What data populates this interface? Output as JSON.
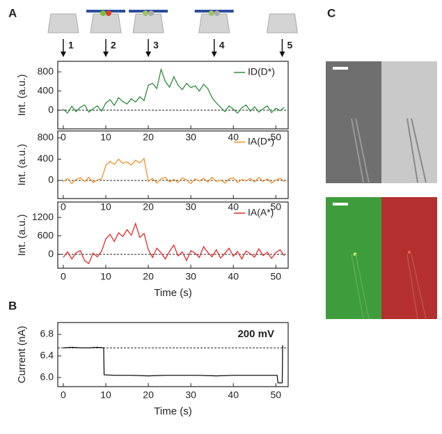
{
  "panel_labels": [
    "A",
    "B",
    "C"
  ],
  "markers": {
    "labels": [
      "1",
      "2",
      "3",
      "4",
      "5"
    ],
    "x": [
      0,
      10,
      20,
      35.5,
      51.5
    ]
  },
  "chart_data": [
    {
      "type": "line",
      "x": [
        0,
        1,
        2,
        3,
        4,
        5,
        6,
        7,
        8,
        9,
        10,
        11,
        12,
        13,
        14,
        15,
        16,
        17,
        18,
        19,
        20,
        21,
        22,
        23,
        24,
        25,
        26,
        27,
        28,
        29,
        30,
        31,
        32,
        33,
        34,
        35,
        36,
        37,
        38,
        39,
        40,
        41,
        42,
        43,
        44,
        45,
        46,
        47,
        48,
        49,
        50,
        51,
        52
      ],
      "series": [
        {
          "name": "ID(D*)",
          "color": "#2e8b3a",
          "values": [
            20,
            -60,
            80,
            -30,
            60,
            110,
            -40,
            30,
            90,
            -20,
            150,
            220,
            100,
            260,
            180,
            130,
            240,
            170,
            280,
            200,
            520,
            560,
            450,
            850,
            600,
            480,
            700,
            520,
            430,
            560,
            470,
            510,
            400,
            540,
            450,
            260,
            150,
            60,
            -30,
            90,
            20,
            -60,
            50,
            110,
            -20,
            70,
            -40,
            30,
            90,
            -50,
            40,
            -10,
            60
          ]
        }
      ],
      "xlim": [
        -1.3,
        52.9
      ],
      "xticks": [
        0,
        10,
        20,
        30,
        40,
        50
      ],
      "ylim": [
        -390,
        1020
      ],
      "yticks": [
        0,
        400,
        800
      ],
      "reference": 0,
      "ylabel": "Int. (a.u.)"
    },
    {
      "type": "line",
      "x": [
        0,
        1,
        2,
        3,
        4,
        5,
        6,
        7,
        8,
        9,
        10,
        11,
        12,
        13,
        14,
        15,
        16,
        17,
        18,
        19,
        20,
        21,
        22,
        23,
        24,
        25,
        26,
        27,
        28,
        29,
        30,
        31,
        32,
        33,
        34,
        35,
        36,
        37,
        38,
        39,
        40,
        41,
        42,
        43,
        44,
        45,
        46,
        47,
        48,
        49,
        50,
        51,
        52
      ],
      "series": [
        {
          "name": "IA(D*)",
          "color": "#f0912a",
          "values": [
            -30,
            40,
            -60,
            20,
            50,
            -20,
            60,
            -40,
            10,
            30,
            280,
            360,
            300,
            400,
            320,
            350,
            290,
            380,
            330,
            410,
            -20,
            40,
            -50,
            30,
            60,
            -30,
            20,
            -40,
            50,
            10,
            -60,
            30,
            -10,
            40,
            -30,
            60,
            -20,
            10,
            -50,
            30,
            50,
            -40,
            20,
            -10,
            40,
            -30,
            60,
            -20,
            30,
            -50,
            10,
            40,
            -20
          ]
        }
      ],
      "xlim": [
        -1.3,
        52.9
      ],
      "xticks": [
        0,
        10,
        20,
        30,
        40,
        50
      ],
      "ylim": [
        -340,
        930
      ],
      "yticks": [
        0,
        400,
        800
      ],
      "reference": 0,
      "ylabel": "Int. (a.u.)"
    },
    {
      "type": "line",
      "x": [
        0,
        1,
        2,
        3,
        4,
        5,
        6,
        7,
        8,
        9,
        10,
        11,
        12,
        13,
        14,
        15,
        16,
        17,
        18,
        19,
        20,
        21,
        22,
        23,
        24,
        25,
        26,
        27,
        28,
        29,
        30,
        31,
        32,
        33,
        34,
        35,
        36,
        37,
        38,
        39,
        40,
        41,
        42,
        43,
        44,
        45,
        46,
        47,
        48,
        49,
        50,
        51,
        52
      ],
      "series": [
        {
          "name": "IA(A*)",
          "color": "#e02828",
          "values": [
            -100,
            80,
            -150,
            50,
            120,
            -200,
            -300,
            40,
            -80,
            100,
            500,
            650,
            420,
            700,
            580,
            800,
            620,
            1000,
            550,
            680,
            150,
            -100,
            200,
            50,
            -150,
            100,
            300,
            -50,
            80,
            -200,
            120,
            40,
            -100,
            250,
            60,
            -80,
            150,
            -120,
            30,
            200,
            -60,
            90,
            -150,
            110,
            20,
            -90,
            180,
            -40,
            70,
            -130,
            60,
            150,
            -50
          ]
        }
      ],
      "xlim": [
        -1.3,
        52.9
      ],
      "xticks": [
        0,
        10,
        20,
        30,
        40,
        50
      ],
      "ylim": [
        -450,
        1700
      ],
      "yticks": [
        0,
        600,
        1200
      ],
      "reference": 0,
      "ylabel": "Int. (a.u.)",
      "xlabel": "Time (s)"
    },
    {
      "type": "line",
      "x": [
        0,
        2,
        4,
        6,
        8,
        9.5,
        9.6,
        12,
        16,
        20,
        24,
        28,
        32,
        36,
        40,
        44,
        48,
        50.3,
        50.5,
        51.5,
        51.6
      ],
      "series": [
        {
          "color": "#111111",
          "values": [
            6.55,
            6.56,
            6.55,
            6.55,
            6.56,
            6.55,
            6.05,
            6.04,
            6.04,
            6.03,
            6.04,
            6.04,
            6.04,
            6.03,
            6.04,
            6.04,
            6.04,
            6.04,
            5.9,
            5.9,
            6.6
          ]
        }
      ],
      "xlim": [
        -1.3,
        52.9
      ],
      "xticks": [
        0,
        10,
        20,
        30,
        40,
        50
      ],
      "ylim": [
        5.83,
        7.02
      ],
      "yticks": [
        {
          "value": 6.0,
          "label": "6.0"
        },
        6.4,
        6.8
      ],
      "reference": 6.55,
      "annotation": "200 mV",
      "ylabel": "Current (nA)",
      "xlabel": "Time (s)"
    }
  ]
}
